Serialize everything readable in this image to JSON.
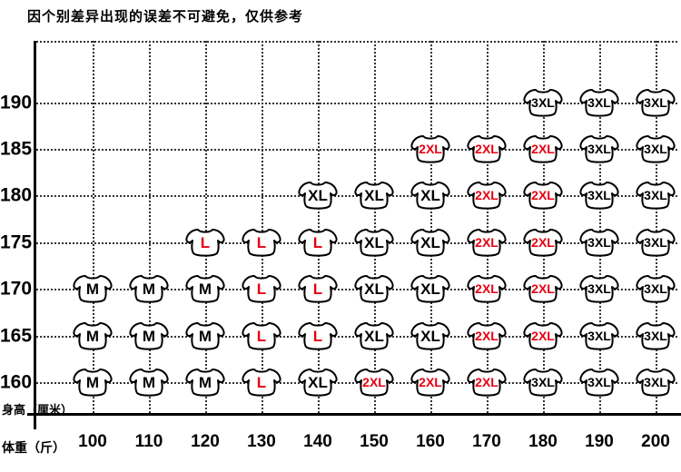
{
  "title": "因个别差异出现的误差不可避免，仅供参考",
  "chart_data": {
    "type": "scatter",
    "title": "因个别差异出现的误差不可避免，仅供参考",
    "x_label": "体重（斤）",
    "y_label": "身高（厘米）",
    "x_ticks": [
      100,
      110,
      120,
      130,
      140,
      150,
      160,
      170,
      180,
      190,
      200
    ],
    "y_ticks": [
      190,
      185,
      180,
      175,
      170,
      165,
      160
    ],
    "grid": true,
    "legend": "none",
    "marker": "t-shirt-icon",
    "colors": {
      "size_normal": "#000000",
      "size_highlight": "#e60012",
      "axis": "#000000",
      "gridline": "#333333",
      "marker_fill": "#ffffff"
    },
    "rows": [
      {
        "height": 190,
        "cells": [
          {
            "weight": 180,
            "size": "3XL",
            "red": false
          },
          {
            "weight": 190,
            "size": "3XL",
            "red": false
          },
          {
            "weight": 200,
            "size": "3XL",
            "red": false
          }
        ]
      },
      {
        "height": 185,
        "cells": [
          {
            "weight": 160,
            "size": "2XL",
            "red": true
          },
          {
            "weight": 170,
            "size": "2XL",
            "red": true
          },
          {
            "weight": 180,
            "size": "2XL",
            "red": true
          },
          {
            "weight": 190,
            "size": "3XL",
            "red": false
          },
          {
            "weight": 200,
            "size": "3XL",
            "red": false
          }
        ]
      },
      {
        "height": 180,
        "cells": [
          {
            "weight": 140,
            "size": "XL",
            "red": false
          },
          {
            "weight": 150,
            "size": "XL",
            "red": false
          },
          {
            "weight": 160,
            "size": "XL",
            "red": false
          },
          {
            "weight": 170,
            "size": "2XL",
            "red": true
          },
          {
            "weight": 180,
            "size": "2XL",
            "red": true
          },
          {
            "weight": 190,
            "size": "3XL",
            "red": false
          },
          {
            "weight": 200,
            "size": "3XL",
            "red": false
          }
        ]
      },
      {
        "height": 175,
        "cells": [
          {
            "weight": 120,
            "size": "L",
            "red": true
          },
          {
            "weight": 130,
            "size": "L",
            "red": true
          },
          {
            "weight": 140,
            "size": "L",
            "red": true
          },
          {
            "weight": 150,
            "size": "XL",
            "red": false
          },
          {
            "weight": 160,
            "size": "XL",
            "red": false
          },
          {
            "weight": 170,
            "size": "2XL",
            "red": true
          },
          {
            "weight": 180,
            "size": "2XL",
            "red": true
          },
          {
            "weight": 190,
            "size": "3XL",
            "red": false
          },
          {
            "weight": 200,
            "size": "3XL",
            "red": false
          }
        ]
      },
      {
        "height": 170,
        "cells": [
          {
            "weight": 100,
            "size": "M",
            "red": false
          },
          {
            "weight": 110,
            "size": "M",
            "red": false
          },
          {
            "weight": 120,
            "size": "M",
            "red": false
          },
          {
            "weight": 130,
            "size": "L",
            "red": true
          },
          {
            "weight": 140,
            "size": "L",
            "red": true
          },
          {
            "weight": 150,
            "size": "XL",
            "red": false
          },
          {
            "weight": 160,
            "size": "XL",
            "red": false
          },
          {
            "weight": 170,
            "size": "2XL",
            "red": true
          },
          {
            "weight": 180,
            "size": "2XL",
            "red": true
          },
          {
            "weight": 190,
            "size": "3XL",
            "red": false
          },
          {
            "weight": 200,
            "size": "3XL",
            "red": false
          }
        ]
      },
      {
        "height": 165,
        "cells": [
          {
            "weight": 100,
            "size": "M",
            "red": false
          },
          {
            "weight": 110,
            "size": "M",
            "red": false
          },
          {
            "weight": 120,
            "size": "M",
            "red": false
          },
          {
            "weight": 130,
            "size": "L",
            "red": true
          },
          {
            "weight": 140,
            "size": "L",
            "red": true
          },
          {
            "weight": 150,
            "size": "XL",
            "red": false
          },
          {
            "weight": 160,
            "size": "XL",
            "red": false
          },
          {
            "weight": 170,
            "size": "2XL",
            "red": true
          },
          {
            "weight": 180,
            "size": "2XL",
            "red": true
          },
          {
            "weight": 190,
            "size": "3XL",
            "red": false
          },
          {
            "weight": 200,
            "size": "3XL",
            "red": false
          }
        ]
      },
      {
        "height": 160,
        "cells": [
          {
            "weight": 100,
            "size": "M",
            "red": false
          },
          {
            "weight": 110,
            "size": "M",
            "red": false
          },
          {
            "weight": 120,
            "size": "M",
            "red": false
          },
          {
            "weight": 130,
            "size": "L",
            "red": true
          },
          {
            "weight": 140,
            "size": "XL",
            "red": false
          },
          {
            "weight": 150,
            "size": "2XL",
            "red": true
          },
          {
            "weight": 160,
            "size": "2XL",
            "red": true
          },
          {
            "weight": 170,
            "size": "2XL",
            "red": true
          },
          {
            "weight": 180,
            "size": "3XL",
            "red": false
          },
          {
            "weight": 190,
            "size": "3XL",
            "red": false
          },
          {
            "weight": 200,
            "size": "3XL",
            "red": false
          }
        ]
      }
    ]
  }
}
